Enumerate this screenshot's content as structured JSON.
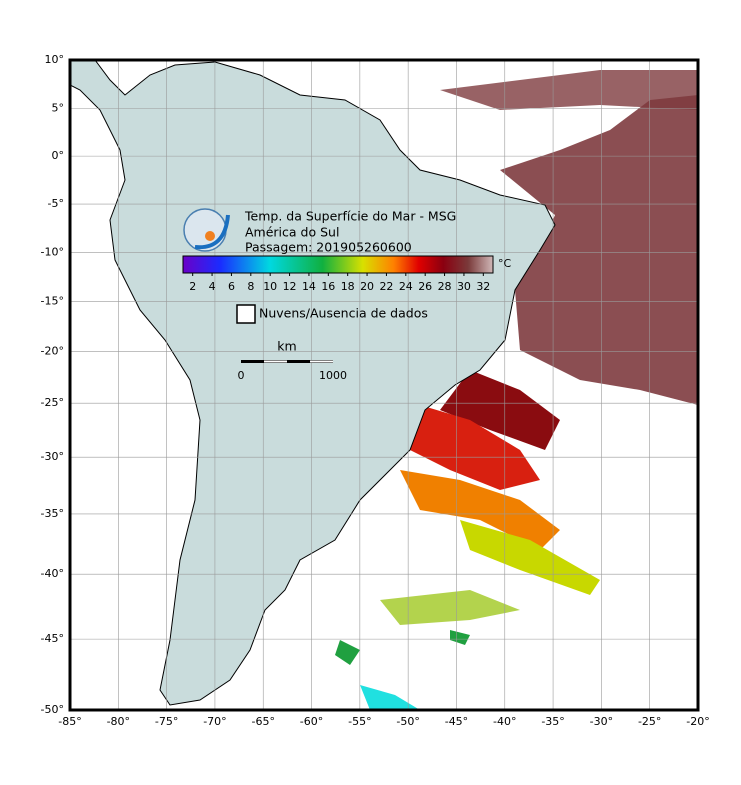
{
  "title_lines": [
    "Temp. da Superfície do Mar - MSG",
    "América do Sul",
    "Passagem: 201905260600"
  ],
  "colorbar": {
    "ticks": [
      2,
      4,
      6,
      8,
      10,
      12,
      14,
      16,
      18,
      20,
      22,
      24,
      26,
      28,
      30,
      32
    ],
    "range": [
      1,
      33
    ],
    "unit": "°C"
  },
  "legend": "Nuvens/Ausencia de dados",
  "scale_bar": {
    "unit": "km",
    "labels": [
      0,
      1000
    ]
  },
  "lon": {
    "lim": [
      -85,
      -20
    ],
    "ticks": [
      {
        "value": -85,
        "label": "-85°"
      },
      {
        "value": -80,
        "label": "-80°"
      },
      {
        "value": -75,
        "label": "-75°"
      },
      {
        "value": -70,
        "label": "-70°"
      },
      {
        "value": -65,
        "label": "-65°"
      },
      {
        "value": -60,
        "label": "-60°"
      },
      {
        "value": -55,
        "label": "-55°"
      },
      {
        "value": -50,
        "label": "-50°"
      },
      {
        "value": -45,
        "label": "-45°"
      },
      {
        "value": -40,
        "label": "-40°"
      },
      {
        "value": -35,
        "label": "-35°"
      },
      {
        "value": -30,
        "label": "-30°"
      },
      {
        "value": -25,
        "label": "-25°"
      },
      {
        "value": -20,
        "label": "-20°"
      }
    ]
  },
  "lat": {
    "lim": [
      -50,
      10
    ],
    "ticks": [
      {
        "value": 10,
        "label": "10°"
      },
      {
        "value": 5,
        "label": "5°"
      },
      {
        "value": 0,
        "label": "0°"
      },
      {
        "value": -5,
        "label": "-5°"
      },
      {
        "value": -10,
        "label": "-10°"
      },
      {
        "value": -15,
        "label": "-15°"
      },
      {
        "value": -20,
        "label": "-20°"
      },
      {
        "value": -25,
        "label": "-25°"
      },
      {
        "value": -30,
        "label": "-30°"
      },
      {
        "value": -35,
        "label": "-35°"
      },
      {
        "value": -40,
        "label": "-40°"
      },
      {
        "value": -45,
        "label": "-45°"
      },
      {
        "value": -50,
        "label": "-50°"
      }
    ]
  }
}
